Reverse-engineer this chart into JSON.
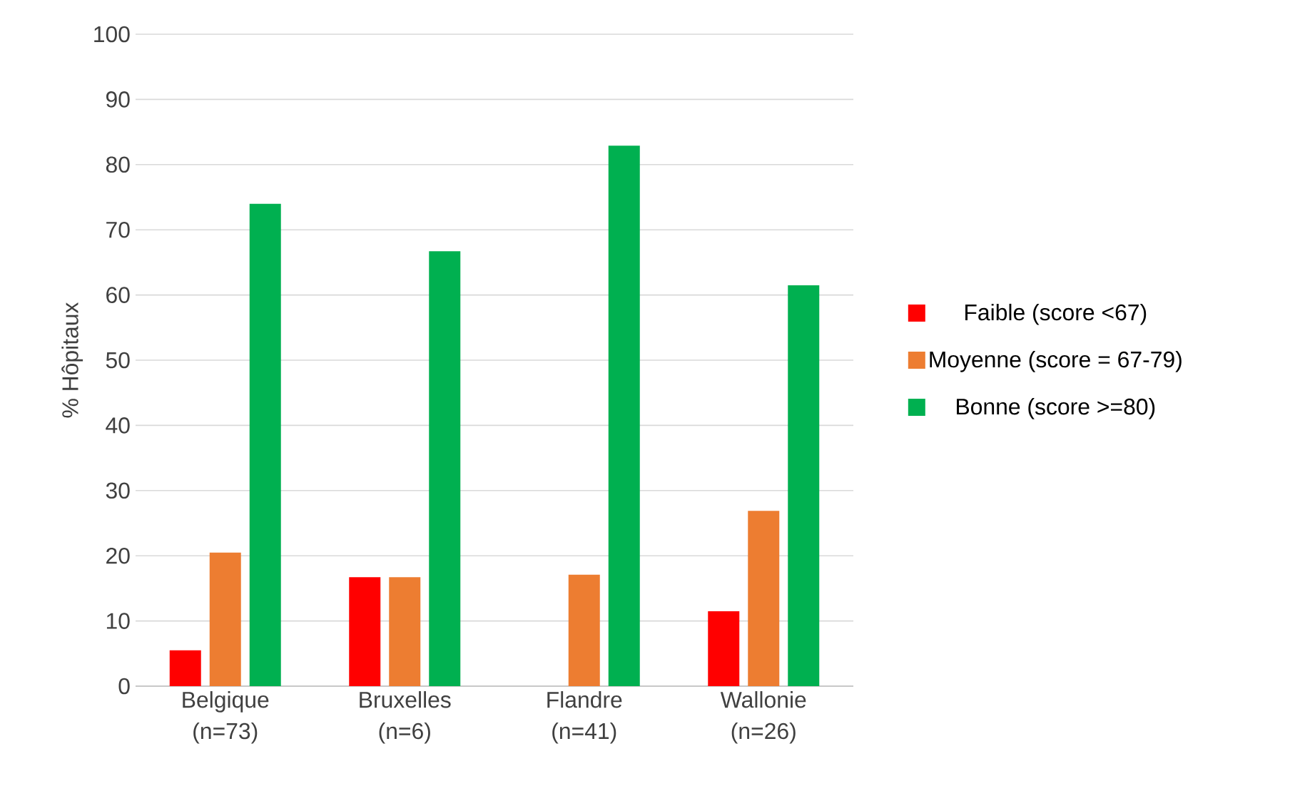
{
  "chart_data": {
    "type": "bar",
    "ylabel": "% Hôpitaux",
    "categories": [
      "Belgique (n=73)",
      "Bruxelles (n=6)",
      "Flandre (n=41)",
      "Wallonie (n=26)"
    ],
    "series": [
      {
        "name": "Faible (score <67)",
        "color": "#ff0000",
        "values": [
          5.5,
          16.7,
          0,
          11.5
        ]
      },
      {
        "name": "Moyenne (score = 67-79)",
        "color": "#ed7d31",
        "values": [
          20.5,
          16.7,
          17.1,
          26.9
        ]
      },
      {
        "name": "Bonne (score >=80)",
        "color": "#00b050",
        "values": [
          74.0,
          66.7,
          82.9,
          61.5
        ]
      }
    ],
    "ylim": [
      0,
      100
    ],
    "yticks": [
      0,
      10,
      20,
      30,
      40,
      50,
      60,
      70,
      80,
      90,
      100
    ],
    "grid": "y",
    "legend": "right"
  }
}
